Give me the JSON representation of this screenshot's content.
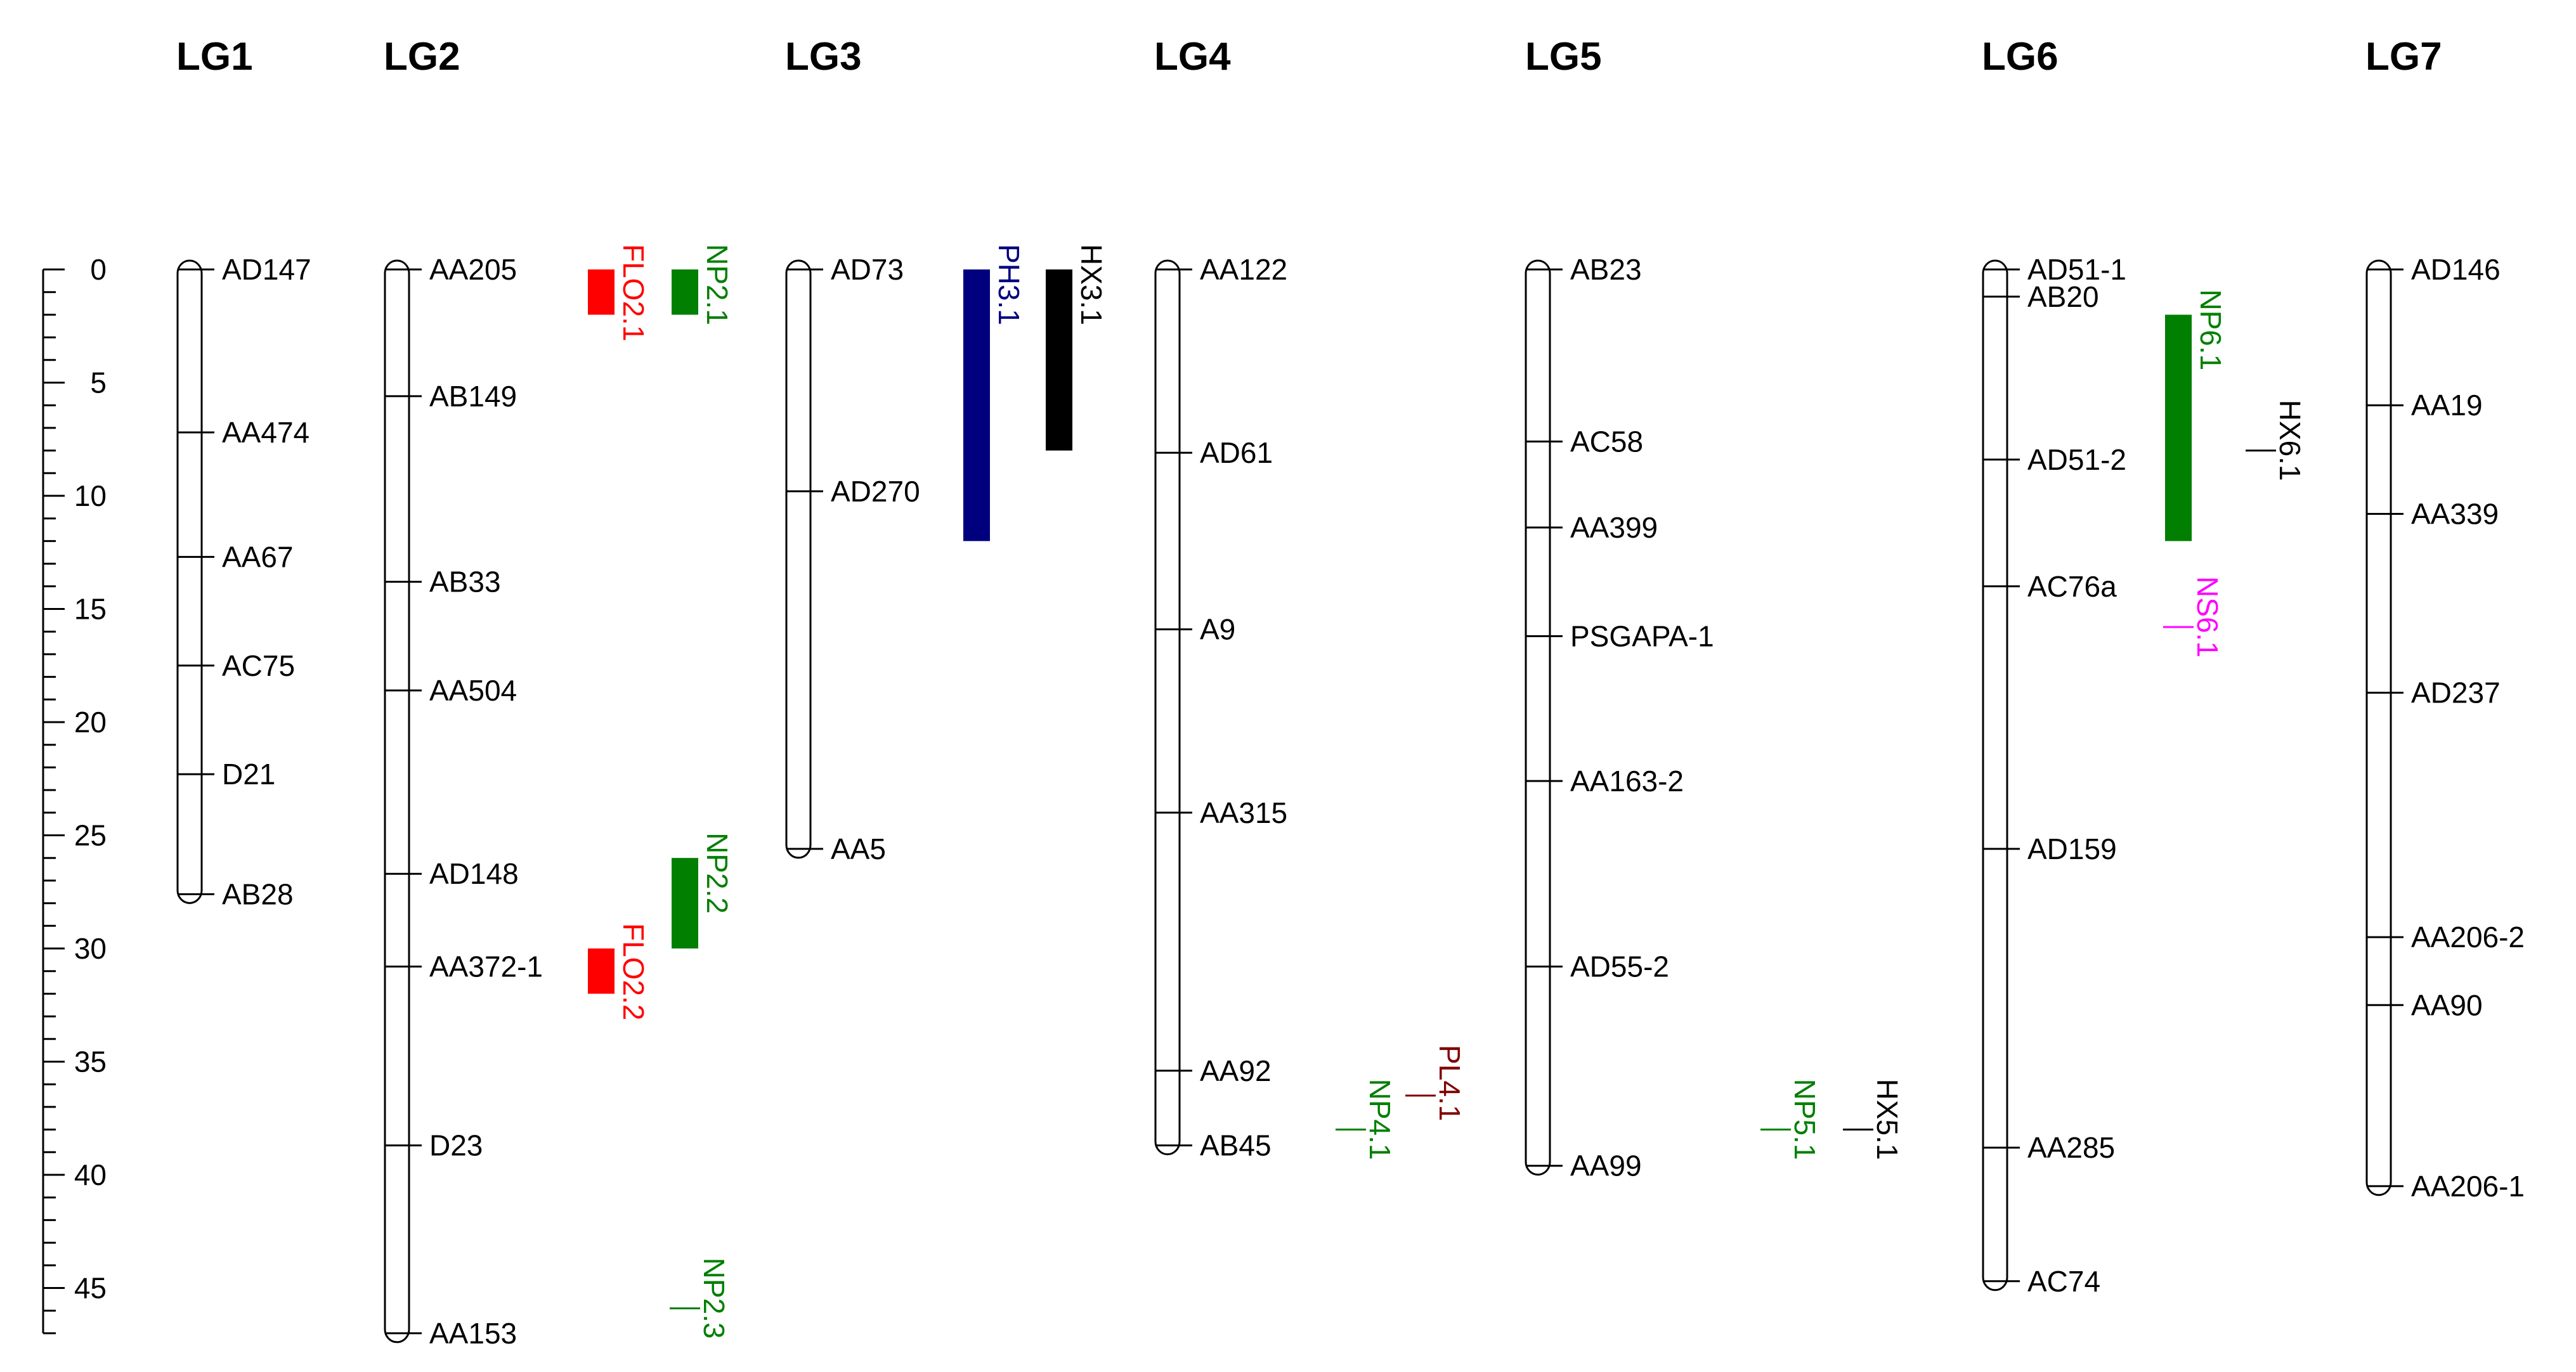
{
  "figure": {
    "type": "linkage-map",
    "units": "cM",
    "scale": {
      "min": 0,
      "max": 47,
      "labeled_ticks": [
        0,
        5,
        10,
        15,
        20,
        25,
        30,
        35,
        40,
        45
      ],
      "minor_step": 1
    }
  },
  "colors": {
    "ink": "#000000",
    "flo": "#ff0000",
    "np": "#007f00",
    "ph": "#00007f",
    "hx": "#000000",
    "pl": "#7f0000",
    "ns": "#ff00ff"
  },
  "linkage_groups": [
    {
      "id": "LG1",
      "name": "LG1",
      "length_cm": 27.6,
      "markers": [
        {
          "name": "AD147",
          "pos": 0
        },
        {
          "name": "AA474",
          "pos": 7.2
        },
        {
          "name": "AA67",
          "pos": 12.7
        },
        {
          "name": "AC75",
          "pos": 17.5
        },
        {
          "name": "D21",
          "pos": 22.3
        },
        {
          "name": "AB28",
          "pos": 27.6
        }
      ],
      "qtls": []
    },
    {
      "id": "LG2",
      "name": "LG2",
      "length_cm": 47,
      "markers": [
        {
          "name": "AA205",
          "pos": 0
        },
        {
          "name": "AB149",
          "pos": 5.6
        },
        {
          "name": "AB33",
          "pos": 13.8
        },
        {
          "name": "AA504",
          "pos": 18.6
        },
        {
          "name": "AD148",
          "pos": 26.7
        },
        {
          "name": "AA372-1",
          "pos": 30.8
        },
        {
          "name": "D23",
          "pos": 38.7
        },
        {
          "name": "AA153",
          "pos": 47
        }
      ],
      "qtls": [
        {
          "name": "FLO2.1",
          "start": 0,
          "end": 2,
          "color_key": "flo",
          "column": 0
        },
        {
          "name": "NP2.1",
          "start": 0,
          "end": 2,
          "color_key": "np",
          "column": 1
        },
        {
          "name": "FLO2.2",
          "start": 30,
          "end": 32,
          "color_key": "flo",
          "column": 0
        },
        {
          "name": "NP2.2",
          "start": 26,
          "end": 30,
          "color_key": "np",
          "column": 1
        },
        {
          "name": "NP2.3",
          "start": 45.9,
          "end": 45.9,
          "color_key": "np",
          "column": 1
        }
      ]
    },
    {
      "id": "LG3",
      "name": "LG3",
      "length_cm": 25.6,
      "markers": [
        {
          "name": "AD73",
          "pos": 0
        },
        {
          "name": "AD270",
          "pos": 9.8
        },
        {
          "name": "AA5",
          "pos": 25.6
        }
      ],
      "qtls": [
        {
          "name": "PH3.1",
          "start": 0,
          "end": 12,
          "color_key": "ph",
          "column": 0
        },
        {
          "name": "HX3.1",
          "start": 0,
          "end": 8,
          "color_key": "hx",
          "column": 1
        }
      ]
    },
    {
      "id": "LG4",
      "name": "LG4",
      "length_cm": 38.7,
      "markers": [
        {
          "name": "AA122",
          "pos": 0
        },
        {
          "name": "AD61",
          "pos": 8.1
        },
        {
          "name": "A9",
          "pos": 15.9
        },
        {
          "name": "AA315",
          "pos": 24
        },
        {
          "name": "AA92",
          "pos": 35.4
        },
        {
          "name": "AB45",
          "pos": 38.7
        }
      ],
      "qtls": [
        {
          "name": "NP4.1",
          "start": 38,
          "end": 38,
          "color_key": "np",
          "column": 0
        },
        {
          "name": "PL4.1",
          "start": 36.5,
          "end": 36.5,
          "color_key": "pl",
          "column": 1
        }
      ]
    },
    {
      "id": "LG5",
      "name": "LG5",
      "length_cm": 39.6,
      "markers": [
        {
          "name": "AB23",
          "pos": 0
        },
        {
          "name": "AC58",
          "pos": 7.6
        },
        {
          "name": "AA399",
          "pos": 11.4
        },
        {
          "name": "PSGAPA-1",
          "pos": 16.2
        },
        {
          "name": "AA163-2",
          "pos": 22.6
        },
        {
          "name": "AD55-2",
          "pos": 30.8
        },
        {
          "name": "AA99",
          "pos": 39.6
        }
      ],
      "qtls": [
        {
          "name": "NP5.1",
          "start": 38,
          "end": 38,
          "color_key": "np",
          "column": 0
        },
        {
          "name": "HX5.1",
          "start": 38,
          "end": 38,
          "color_key": "hx",
          "column": 1
        }
      ]
    },
    {
      "id": "LG6",
      "name": "LG6",
      "length_cm": 44.7,
      "markers": [
        {
          "name": "AD51-1",
          "pos": 0
        },
        {
          "name": "AB20",
          "pos": 1.2
        },
        {
          "name": "AD51-2",
          "pos": 8.4
        },
        {
          "name": "AC76a",
          "pos": 14
        },
        {
          "name": "AD159",
          "pos": 25.6
        },
        {
          "name": "AA285",
          "pos": 38.8
        },
        {
          "name": "AC74",
          "pos": 44.7
        }
      ],
      "qtls": [
        {
          "name": "NP6.1",
          "start": 2,
          "end": 12,
          "color_key": "np",
          "column": 0
        },
        {
          "name": "NS6.1",
          "start": 15.8,
          "end": 15.8,
          "color_key": "ns",
          "column": 0
        },
        {
          "name": "HX6.1",
          "start": 8,
          "end": 8,
          "color_key": "hx",
          "column": 1
        }
      ]
    },
    {
      "id": "LG7",
      "name": "LG7",
      "length_cm": 40.5,
      "markers": [
        {
          "name": "AD146",
          "pos": 0
        },
        {
          "name": "AA19",
          "pos": 6
        },
        {
          "name": "AA339",
          "pos": 10.8
        },
        {
          "name": "AD237",
          "pos": 18.7
        },
        {
          "name": "AA206-2",
          "pos": 29.5
        },
        {
          "name": "AA90",
          "pos": 32.5
        },
        {
          "name": "AA206-1",
          "pos": 40.5
        }
      ],
      "qtls": []
    }
  ]
}
